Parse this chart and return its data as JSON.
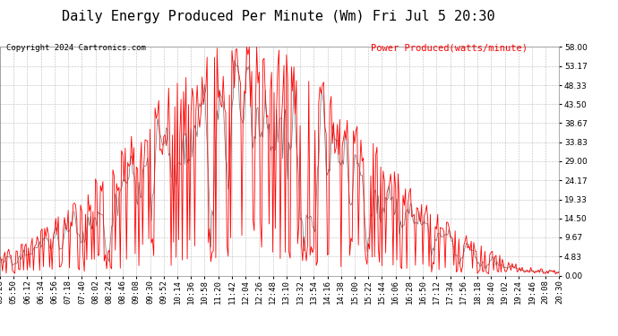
{
  "title": "Daily Energy Produced Per Minute (Wm) Fri Jul 5 20:30",
  "copyright": "Copyright 2024 Cartronics.com",
  "legend_label": "Power Produced(watts/minute)",
  "legend_color": "#ff0000",
  "yticks": [
    0.0,
    4.83,
    9.67,
    14.5,
    19.33,
    24.17,
    29.0,
    33.83,
    38.67,
    43.5,
    48.33,
    53.17,
    58.0
  ],
  "ymin": 0.0,
  "ymax": 58.0,
  "line_color": "#ff0000",
  "line2_color": "#333333",
  "bg_color": "#ffffff",
  "grid_color": "#bbbbbb",
  "tick_label_fontsize": 6.5,
  "title_fontsize": 11,
  "copyright_fontsize": 6.5,
  "legend_fontsize": 7.5
}
